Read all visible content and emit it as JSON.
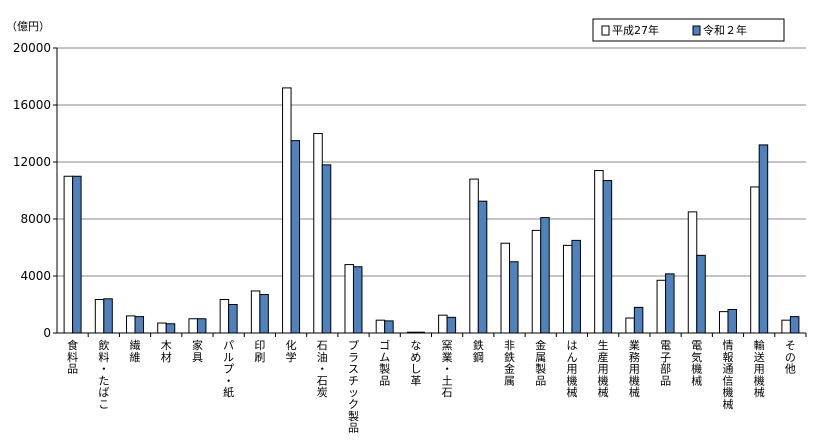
{
  "chart_data": {
    "type": "bar",
    "unit_label": "（億円）",
    "ylim": [
      0,
      20000
    ],
    "yticks": [
      0,
      4000,
      8000,
      12000,
      16000,
      20000
    ],
    "grid": true,
    "legend_position": "top-right",
    "categories": [
      "食料品",
      "飲料・たばこ",
      "繊維",
      "木材",
      "家具",
      "パルプ・紙",
      "印刷",
      "化学",
      "石油・石炭",
      "プラスチック製品",
      "ゴム製品",
      "なめし革",
      "窯業・土石",
      "鉄鋼",
      "非鉄金属",
      "金属製品",
      "はん用機械",
      "生産用機械",
      "業務用機械",
      "電子部品",
      "電気機械",
      "情報通信機械",
      "輸送用機械",
      "その他"
    ],
    "series": [
      {
        "name": "平成27年",
        "color": "#ffffff",
        "values": [
          11000,
          2350,
          1200,
          700,
          1000,
          2350,
          2950,
          17200,
          14000,
          4800,
          900,
          0,
          1250,
          10800,
          6300,
          7200,
          6150,
          11400,
          1050,
          3700,
          8500,
          1500,
          10250,
          900
        ]
      },
      {
        "name": "令和２年",
        "color": "#4f81bd",
        "values": [
          11000,
          2400,
          1150,
          650,
          1000,
          2000,
          2700,
          13500,
          11800,
          4650,
          850,
          0,
          1100,
          9250,
          5000,
          8100,
          6500,
          10700,
          1800,
          4150,
          5450,
          1650,
          13200,
          1150
        ]
      }
    ]
  }
}
